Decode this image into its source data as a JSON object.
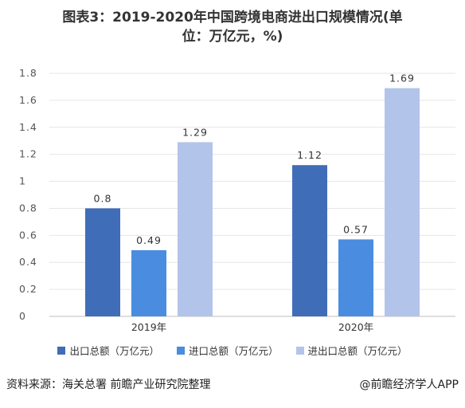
{
  "title": {
    "line1": "图表3：2019-2020年中国跨境电商进出口规模情况(单",
    "line2": "位：万亿元，%)"
  },
  "chart_data": {
    "type": "bar",
    "categories": [
      "2019年",
      "2020年"
    ],
    "series": [
      {
        "name": "出口总额（万亿元）",
        "values": [
          0.8,
          1.12
        ],
        "color": "#3f6db7"
      },
      {
        "name": "进口总额（万亿元）",
        "values": [
          0.49,
          0.57
        ],
        "color": "#4a8de0"
      },
      {
        "name": "进出口总额（万亿元）",
        "values": [
          1.29,
          1.69
        ],
        "color": "#b3c4ea"
      }
    ],
    "data_labels": [
      [
        "0.8",
        "1.12"
      ],
      [
        "0.49",
        "0.57"
      ],
      [
        "1.29",
        "1.69"
      ]
    ],
    "yticks": [
      "0",
      "0.2",
      "0.4",
      "0.6",
      "0.8",
      "1",
      "1.2",
      "1.4",
      "1.6",
      "1.8"
    ],
    "ylim": [
      0,
      1.8
    ],
    "grid": true,
    "legend_position": "bottom"
  },
  "footer": {
    "source": "资料来源：海关总署 前瞻产业研究院整理",
    "credit": "@前瞻经济学人APP"
  }
}
